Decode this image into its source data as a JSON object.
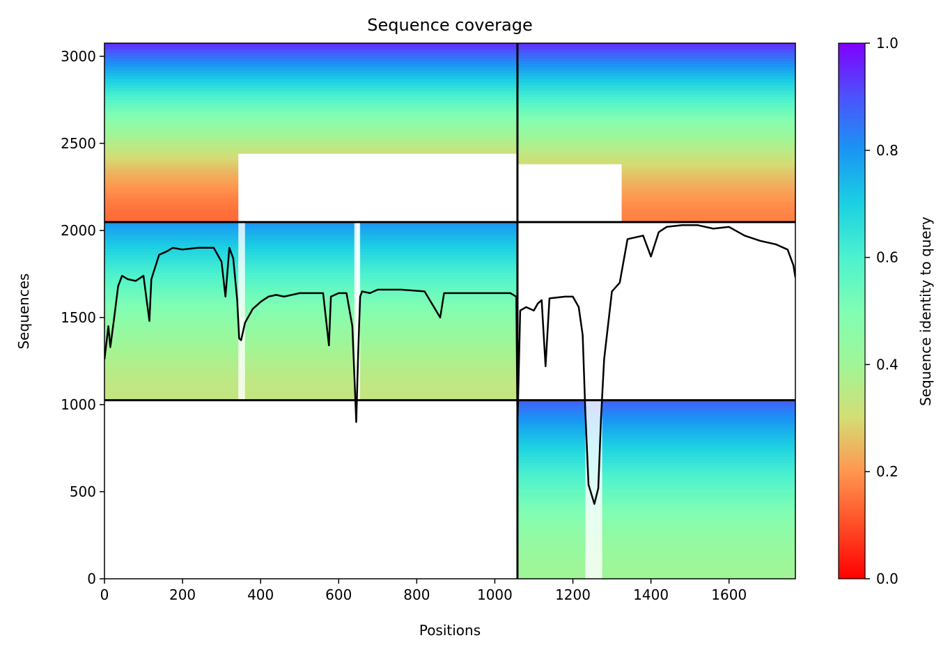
{
  "chart_data": {
    "type": "heatmap",
    "title": "Sequence coverage",
    "xlabel": "Positions",
    "ylabel": "Sequences",
    "xlim": [
      0,
      1770
    ],
    "ylim": [
      0,
      3075
    ],
    "x_ticks": [
      0,
      200,
      400,
      600,
      800,
      1000,
      1200,
      1400,
      1600
    ],
    "y_ticks": [
      0,
      500,
      1000,
      1500,
      2000,
      2500,
      3000
    ],
    "colorbar": {
      "label": "Sequence identity to query",
      "range": [
        0.0,
        1.0
      ],
      "ticks": [
        0.0,
        0.2,
        0.4,
        0.6,
        0.8,
        1.0
      ],
      "tick_labels": [
        "0.0",
        "0.2",
        "0.4",
        "0.6",
        "0.8",
        "1.0"
      ],
      "colormap": "rainbow_r"
    },
    "boundaries": {
      "x": [
        1058
      ],
      "y": [
        1025,
        2048
      ]
    },
    "blocks": [
      {
        "name": "chain-a-pairs",
        "x": [
          0,
          1058
        ],
        "y": [
          1025,
          2048
        ],
        "identity_bottom": 0.33,
        "identity_top": 0.8,
        "coverage_gaps": [
          [
            343,
            360
          ],
          [
            640,
            655
          ],
          [
            645,
            652
          ]
        ]
      },
      {
        "name": "chain-a-only-top",
        "x": [
          0,
          1058
        ],
        "y": [
          2048,
          3075
        ],
        "identity_bottom": 0.14,
        "identity_top": 0.95,
        "empty": [
          [
            343,
            1058,
            2048,
            2440
          ]
        ]
      },
      {
        "name": "chain-b-only-top",
        "x": [
          1058,
          1770
        ],
        "y": [
          2048,
          3075
        ],
        "identity_bottom": 0.17,
        "identity_top": 0.95,
        "empty": [
          [
            1058,
            1325,
            2048,
            2380
          ]
        ]
      },
      {
        "name": "chain-b-pairs",
        "x": [
          1058,
          1770
        ],
        "y": [
          0,
          1025
        ],
        "identity_bottom": 0.4,
        "identity_top": 0.88,
        "coverage_gaps": [
          [
            1232,
            1275
          ]
        ]
      }
    ],
    "series": [
      {
        "x": [
          0,
          10,
          15,
          25,
          35,
          45,
          60,
          80,
          100,
          115,
          120,
          140,
          160,
          175,
          200,
          240,
          280,
          300,
          310,
          320,
          330,
          340,
          345,
          350,
          360,
          380,
          400,
          420,
          440,
          460,
          480,
          500,
          520,
          560,
          575,
          580,
          600,
          620,
          635,
          645,
          650,
          655,
          660,
          680,
          700,
          760,
          820,
          860,
          870,
          900,
          960,
          1000,
          1040,
          1055,
          1058,
          1065,
          1080,
          1100,
          1110,
          1120,
          1130,
          1140,
          1180,
          1200,
          1215,
          1225,
          1232,
          1240,
          1255,
          1265,
          1272,
          1280,
          1300,
          1320,
          1340,
          1360,
          1380,
          1400,
          1420,
          1440,
          1480,
          1520,
          1560,
          1600,
          1640,
          1680,
          1720,
          1750,
          1765,
          1770
        ],
        "y": [
          1260,
          1450,
          1330,
          1500,
          1680,
          1740,
          1720,
          1710,
          1740,
          1480,
          1720,
          1860,
          1880,
          1900,
          1890,
          1900,
          1900,
          1820,
          1620,
          1900,
          1840,
          1600,
          1380,
          1370,
          1470,
          1550,
          1590,
          1620,
          1630,
          1620,
          1630,
          1640,
          1640,
          1640,
          1340,
          1620,
          1640,
          1640,
          1450,
          900,
          1300,
          1620,
          1650,
          1640,
          1660,
          1660,
          1650,
          1500,
          1640,
          1640,
          1640,
          1640,
          1640,
          1620,
          880,
          1540,
          1560,
          1540,
          1580,
          1600,
          1220,
          1610,
          1620,
          1620,
          1560,
          1400,
          950,
          540,
          430,
          520,
          920,
          1260,
          1650,
          1700,
          1950,
          1960,
          1970,
          1850,
          1990,
          2020,
          2030,
          2030,
          2010,
          2020,
          1970,
          1940,
          1920,
          1890,
          1800,
          1730
        ]
      }
    ]
  }
}
